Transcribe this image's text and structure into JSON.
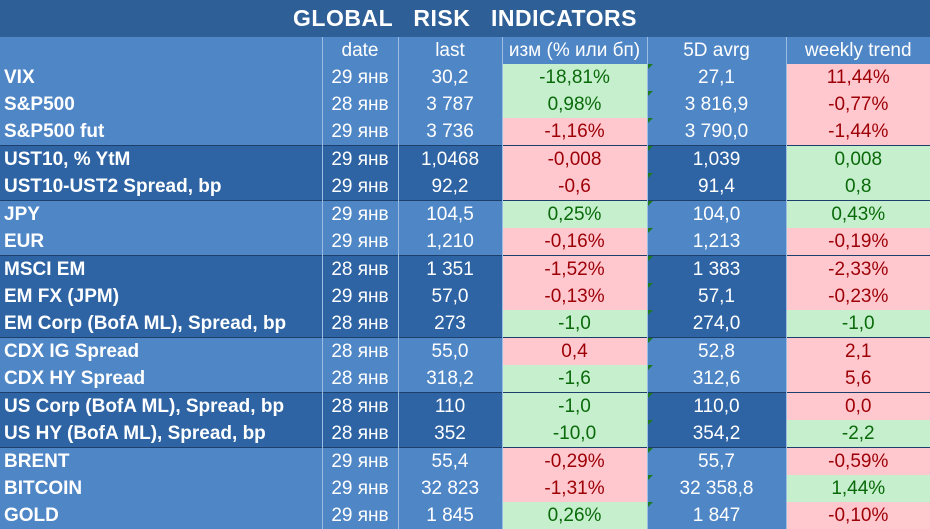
{
  "title": "GLOBAL   RISK   INDICATORS",
  "headers": [
    "",
    "date",
    "last",
    "изм (% или бп)",
    "5D avrg",
    "weekly trend"
  ],
  "rows": [
    {
      "name": "VIX",
      "date": "29 янв",
      "last": "30,2",
      "chg": "-18,81%",
      "chg_s": "pos",
      "avg": "27,1",
      "trend": "11,44%",
      "trend_s": "neg",
      "shade": "light",
      "sep": false
    },
    {
      "name": "S&P500",
      "date": "28 янв",
      "last": "3 787",
      "chg": "0,98%",
      "chg_s": "pos",
      "avg": "3 816,9",
      "trend": "-0,77%",
      "trend_s": "neg",
      "shade": "light",
      "sep": false
    },
    {
      "name": "S&P500 fut",
      "date": "29 янв",
      "last": "3 736",
      "chg": "-1,16%",
      "chg_s": "neg",
      "avg": "3 790,0",
      "trend": "-1,44%",
      "trend_s": "neg",
      "shade": "light",
      "sep": false
    },
    {
      "name": "UST10, % YtM",
      "date": "29 янв",
      "last": "1,0468",
      "chg": "-0,008",
      "chg_s": "neg",
      "avg": "1,039",
      "trend": "0,008",
      "trend_s": "pos",
      "shade": "dark",
      "sep": true
    },
    {
      "name": "UST10-UST2 Spread, bp",
      "date": "29 янв",
      "last": "92,2",
      "chg": "-0,6",
      "chg_s": "neg",
      "avg": "91,4",
      "trend": "0,8",
      "trend_s": "pos",
      "shade": "dark",
      "sep": false
    },
    {
      "name": "JPY",
      "date": "29 янв",
      "last": "104,5",
      "chg": "0,25%",
      "chg_s": "pos",
      "avg": "104,0",
      "trend": "0,43%",
      "trend_s": "pos",
      "shade": "light",
      "sep": true
    },
    {
      "name": "EUR",
      "date": "29 янв",
      "last": "1,210",
      "chg": "-0,16%",
      "chg_s": "neg",
      "avg": "1,213",
      "trend": "-0,19%",
      "trend_s": "neg",
      "shade": "light",
      "sep": false
    },
    {
      "name": "MSCI EM",
      "date": "28 янв",
      "last": "1 351",
      "chg": "-1,52%",
      "chg_s": "neg",
      "avg": "1 383",
      "trend": "-2,33%",
      "trend_s": "neg",
      "shade": "dark",
      "sep": true
    },
    {
      "name": "EM FX (JPM)",
      "date": "29 янв",
      "last": "57,0",
      "chg": "-0,13%",
      "chg_s": "neg",
      "avg": "57,1",
      "trend": "-0,23%",
      "trend_s": "neg",
      "shade": "dark",
      "sep": false
    },
    {
      "name": "EM Corp (BofA ML), Spread, bp",
      "date": "28 янв",
      "last": "273",
      "chg": "-1,0",
      "chg_s": "pos",
      "avg": "274,0",
      "trend": "-1,0",
      "trend_s": "pos",
      "shade": "dark",
      "sep": false
    },
    {
      "name": "CDX IG Spread",
      "date": "28 янв",
      "last": "55,0",
      "chg": "0,4",
      "chg_s": "neg",
      "avg": "52,8",
      "trend": "2,1",
      "trend_s": "neg",
      "shade": "light",
      "sep": true
    },
    {
      "name": "CDX HY Spread",
      "date": "28 янв",
      "last": "318,2",
      "chg": "-1,6",
      "chg_s": "pos",
      "avg": "312,6",
      "trend": "5,6",
      "trend_s": "neg",
      "shade": "light",
      "sep": false
    },
    {
      "name": "US Corp (BofA ML), Spread, bp",
      "date": "28 янв",
      "last": "110",
      "chg": "-1,0",
      "chg_s": "pos",
      "avg": "110,0",
      "trend": "0,0",
      "trend_s": "neg",
      "shade": "dark",
      "sep": true
    },
    {
      "name": "US HY (BofA ML), Spread, bp",
      "date": "28 янв",
      "last": "352",
      "chg": "-10,0",
      "chg_s": "pos",
      "avg": "354,2",
      "trend": "-2,2",
      "trend_s": "pos",
      "shade": "dark",
      "sep": false
    },
    {
      "name": "BRENT",
      "date": "29 янв",
      "last": "55,4",
      "chg": "-0,29%",
      "chg_s": "neg",
      "avg": "55,7",
      "trend": "-0,59%",
      "trend_s": "neg",
      "shade": "light",
      "sep": true
    },
    {
      "name": "BITCOIN",
      "date": "29 янв",
      "last": "32 823",
      "chg": "-1,31%",
      "chg_s": "neg",
      "avg": "32 358,8",
      "trend": "1,44%",
      "trend_s": "pos",
      "shade": "light",
      "sep": false
    },
    {
      "name": "GOLD",
      "date": "29 янв",
      "last": "1 845",
      "chg": "0,26%",
      "chg_s": "pos",
      "avg": "1 847",
      "trend": "-0,10%",
      "trend_s": "neg",
      "shade": "light",
      "sep": false
    }
  ]
}
